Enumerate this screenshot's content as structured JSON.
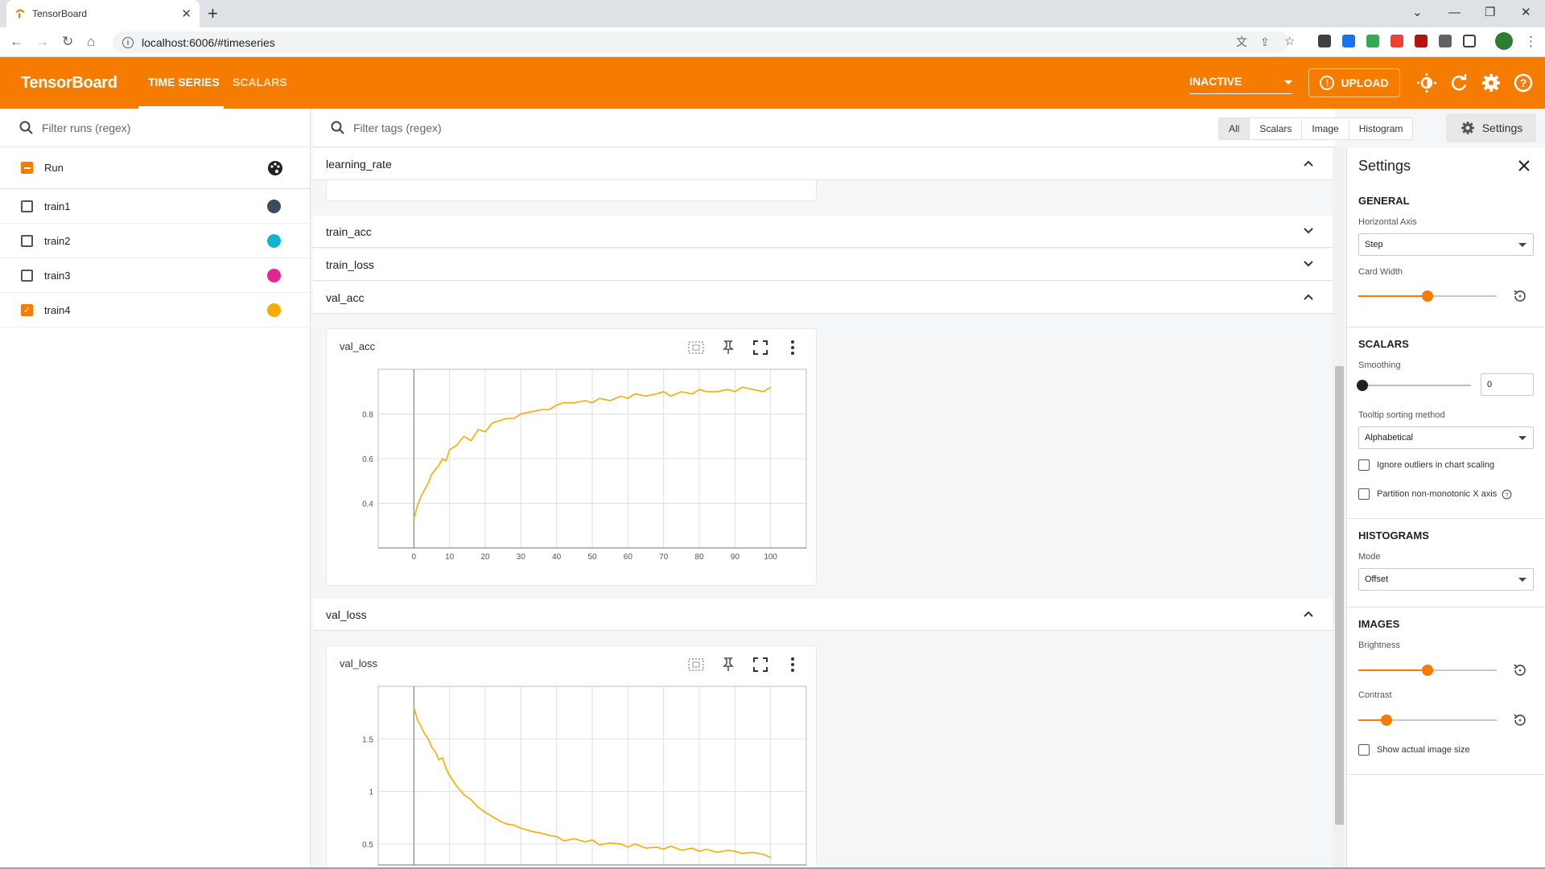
{
  "browser": {
    "tab_title": "TensorBoard",
    "url": "localhost:6006/#timeseries"
  },
  "appbar": {
    "brand": "TensorBoard",
    "tabs": [
      {
        "label": "TIME SERIES"
      },
      {
        "label": "SCALARS"
      }
    ],
    "status": "INACTIVE",
    "upload_label": "UPLOAD"
  },
  "runs": {
    "filter_placeholder": "Filter runs (regex)",
    "header_label": "Run",
    "items": [
      {
        "name": "train1",
        "checked": false,
        "color": "#3d4b61"
      },
      {
        "name": "train2",
        "checked": false,
        "color": "#12b5cb"
      },
      {
        "name": "train3",
        "checked": false,
        "color": "#e52592"
      },
      {
        "name": "train4",
        "checked": true,
        "color": "#f9ab00"
      }
    ]
  },
  "main": {
    "filter_placeholder": "Filter tags (regex)",
    "type_filters": [
      "All",
      "Scalars",
      "Image",
      "Histogram"
    ],
    "settings_button": "Settings",
    "groups": [
      {
        "name": "learning_rate",
        "expanded": true
      },
      {
        "name": "train_acc",
        "expanded": false
      },
      {
        "name": "train_loss",
        "expanded": false
      },
      {
        "name": "val_acc",
        "expanded": true
      },
      {
        "name": "val_loss",
        "expanded": true
      }
    ],
    "cards": [
      {
        "title": "val_acc"
      },
      {
        "title": "val_loss"
      }
    ]
  },
  "chart_data": [
    {
      "type": "line",
      "title": "val_acc",
      "xlim": [
        -10,
        110
      ],
      "ylim": [
        0.2,
        1.0
      ],
      "x_ticks": [
        0,
        10,
        20,
        30,
        40,
        50,
        60,
        70,
        80,
        90,
        100
      ],
      "y_ticks": [
        0.4,
        0.6,
        0.8
      ],
      "series": [
        {
          "color": "#f9ab00",
          "x": [
            0,
            1,
            2,
            3,
            4,
            5,
            6,
            7,
            8,
            9,
            10,
            12,
            14,
            16,
            18,
            20,
            22,
            24,
            26,
            28,
            30,
            33,
            36,
            38,
            40,
            42,
            45,
            48,
            50,
            52,
            55,
            58,
            60,
            62,
            65,
            68,
            70,
            72,
            75,
            78,
            80,
            82,
            85,
            88,
            90,
            92,
            95,
            98,
            100
          ],
          "y": [
            0.33,
            0.39,
            0.43,
            0.46,
            0.49,
            0.53,
            0.55,
            0.57,
            0.6,
            0.59,
            0.64,
            0.66,
            0.7,
            0.68,
            0.73,
            0.72,
            0.76,
            0.77,
            0.78,
            0.78,
            0.8,
            0.81,
            0.82,
            0.82,
            0.84,
            0.85,
            0.85,
            0.86,
            0.85,
            0.87,
            0.86,
            0.88,
            0.87,
            0.89,
            0.88,
            0.89,
            0.9,
            0.88,
            0.9,
            0.89,
            0.91,
            0.9,
            0.9,
            0.91,
            0.9,
            0.92,
            0.91,
            0.9,
            0.92
          ]
        }
      ]
    },
    {
      "type": "line",
      "title": "val_loss",
      "xlim": [
        -10,
        110
      ],
      "ylim": [
        0.3,
        2.0
      ],
      "x_ticks": [
        0,
        10,
        20,
        30,
        40,
        50,
        60,
        70,
        80,
        90,
        100
      ],
      "y_ticks": [
        0.5,
        1,
        1.5
      ],
      "series": [
        {
          "color": "#f9ab00",
          "x": [
            0,
            1,
            2,
            3,
            4,
            5,
            6,
            7,
            8,
            9,
            10,
            12,
            14,
            16,
            18,
            20,
            22,
            24,
            26,
            28,
            30,
            33,
            36,
            38,
            40,
            42,
            45,
            48,
            50,
            52,
            55,
            58,
            60,
            62,
            65,
            68,
            70,
            72,
            75,
            78,
            80,
            82,
            85,
            88,
            90,
            92,
            95,
            98,
            100
          ],
          "y": [
            1.8,
            1.68,
            1.62,
            1.55,
            1.5,
            1.42,
            1.38,
            1.3,
            1.32,
            1.22,
            1.15,
            1.05,
            0.97,
            0.92,
            0.85,
            0.8,
            0.76,
            0.72,
            0.69,
            0.68,
            0.65,
            0.62,
            0.6,
            0.58,
            0.57,
            0.53,
            0.55,
            0.52,
            0.54,
            0.49,
            0.51,
            0.5,
            0.47,
            0.5,
            0.46,
            0.47,
            0.45,
            0.48,
            0.44,
            0.46,
            0.43,
            0.45,
            0.42,
            0.44,
            0.43,
            0.41,
            0.42,
            0.4,
            0.37
          ]
        }
      ]
    }
  ],
  "settings": {
    "title": "Settings",
    "general": {
      "heading": "GENERAL",
      "horizontal_axis_label": "Horizontal Axis",
      "horizontal_axis_value": "Step",
      "card_width_label": "Card Width",
      "card_width_fraction": 0.5
    },
    "scalars": {
      "heading": "SCALARS",
      "smoothing_label": "Smoothing",
      "smoothing_value": "0",
      "tooltip_label": "Tooltip sorting method",
      "tooltip_value": "Alphabetical",
      "ignore_outliers": "Ignore outliers in chart scaling",
      "partition": "Partition non-monotonic X axis"
    },
    "histograms": {
      "heading": "HISTOGRAMS",
      "mode_label": "Mode",
      "mode_value": "Offset"
    },
    "images": {
      "heading": "IMAGES",
      "brightness_label": "Brightness",
      "brightness_fraction": 0.5,
      "contrast_label": "Contrast",
      "contrast_fraction": 0.2,
      "actual_size": "Show actual image size"
    }
  }
}
